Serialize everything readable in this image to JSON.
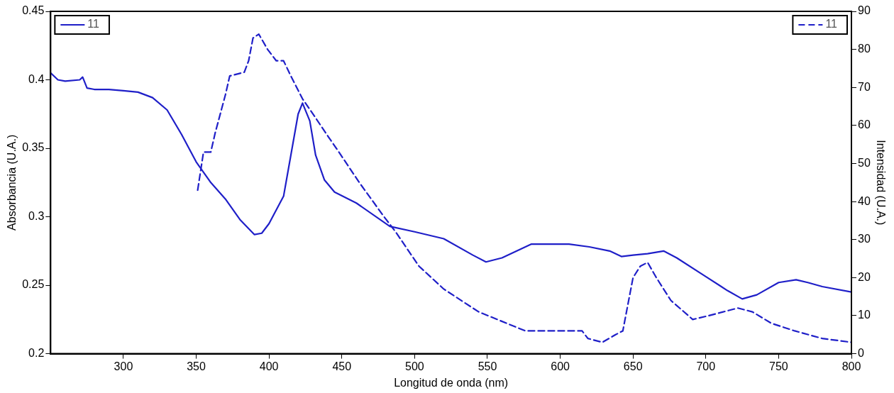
{
  "chart_data": {
    "type": "line",
    "xlabel": "Longitud de onda (nm)",
    "ylabel": "Absorbancia (U.A.)",
    "y2label": "Intensidad (U.A.)",
    "xlim": [
      250,
      800
    ],
    "xticks": [
      300,
      350,
      400,
      450,
      500,
      550,
      600,
      650,
      700,
      750,
      800
    ],
    "ylim": [
      0.2,
      0.45
    ],
    "yticks": [
      0.2,
      0.25,
      0.3,
      0.35,
      0.4,
      0.45
    ],
    "y2lim": [
      0,
      90
    ],
    "y2ticks": [
      0,
      10,
      20,
      30,
      40,
      50,
      60,
      70,
      80,
      90
    ],
    "legend": "top",
    "grid": false,
    "marker": "none",
    "series": [
      {
        "name": "11",
        "color": "#1f1fc8",
        "line_style": "solid",
        "axis": "y",
        "x": [
          250,
          255,
          260,
          270,
          272,
          275,
          280,
          290,
          300,
          310,
          320,
          330,
          340,
          350,
          360,
          370,
          380,
          390,
          395,
          400,
          410,
          415,
          420,
          423,
          428,
          432,
          438,
          445,
          460,
          483,
          500,
          520,
          540,
          549,
          560,
          580,
          606,
          620,
          634,
          642,
          650,
          660,
          671,
          680,
          699,
          715,
          725,
          735,
          750,
          762,
          770,
          780,
          800
        ],
        "values": [
          0.405,
          0.4,
          0.399,
          0.4,
          0.402,
          0.394,
          0.393,
          0.393,
          0.392,
          0.391,
          0.387,
          0.378,
          0.36,
          0.34,
          0.325,
          0.313,
          0.298,
          0.287,
          0.288,
          0.295,
          0.315,
          0.345,
          0.375,
          0.383,
          0.37,
          0.345,
          0.327,
          0.318,
          0.31,
          0.293,
          0.289,
          0.284,
          0.272,
          0.267,
          0.27,
          0.28,
          0.28,
          0.278,
          0.275,
          0.271,
          0.272,
          0.273,
          0.275,
          0.27,
          0.257,
          0.246,
          0.24,
          0.243,
          0.252,
          0.254,
          0.252,
          0.249,
          0.245
        ]
      },
      {
        "name": "11",
        "color": "#1f1fc8",
        "line_style": "dashed",
        "axis": "y2",
        "x": [
          351,
          355,
          360,
          363,
          370,
          373,
          383,
          386,
          389,
          393,
          399,
          405,
          410,
          415,
          423,
          432,
          439,
          448,
          462,
          479,
          487,
          503,
          520,
          544,
          576,
          615,
          619,
          629,
          638,
          643,
          650,
          655,
          660,
          666,
          676,
          691,
          702,
          722,
          732,
          745,
          761,
          780,
          800
        ],
        "values": [
          43,
          53,
          53,
          58,
          68,
          73,
          74,
          77,
          83,
          84,
          80,
          77,
          77,
          73,
          67,
          62,
          58,
          53,
          45,
          36,
          32,
          23,
          17,
          11,
          6,
          6,
          4,
          3,
          5,
          6,
          20,
          23,
          24,
          20,
          14,
          9,
          10,
          12,
          11,
          8,
          6,
          4,
          3
        ]
      }
    ]
  }
}
